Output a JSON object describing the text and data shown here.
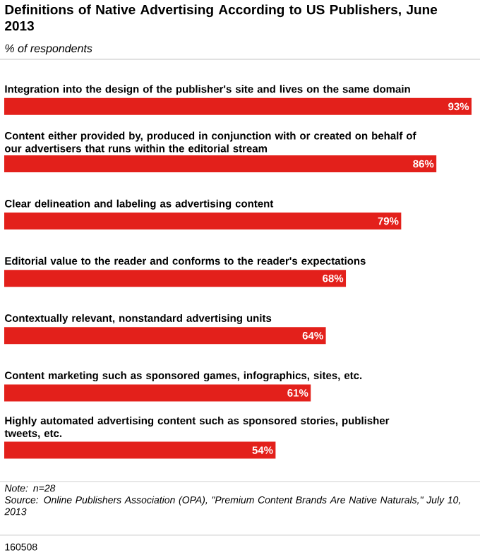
{
  "chart_data": {
    "type": "bar",
    "orientation": "horizontal",
    "title": "Definitions of Native Advertising According to US Publishers, June 2013",
    "subtitle": "% of respondents",
    "categories": [
      "Integration into the design of the publisher's site and lives on the same domain",
      "Content either provided by, produced in conjunction with or created on behalf of our advertisers that runs within the editorial stream",
      "Clear delineation and labeling as advertising content",
      "Editorial value to the reader and conforms to the reader's expectations",
      "Contextually relevant, nonstandard advertising units",
      "Content marketing such as sponsored games, infographics, sites, etc.",
      "Highly automated advertising content such as sponsored stories, publisher tweets, etc."
    ],
    "values": [
      93,
      86,
      79,
      68,
      64,
      61,
      54
    ],
    "value_labels": [
      "93%",
      "86%",
      "79%",
      "68%",
      "64%",
      "61%",
      "54%"
    ],
    "color": "#e3201b",
    "annotations": [
      "Note: n=28",
      "Source: Online Publishers Association (OPA), \"Premium Content Brands Are Native Naturals,\" July 10, 2013",
      "160508"
    ]
  }
}
